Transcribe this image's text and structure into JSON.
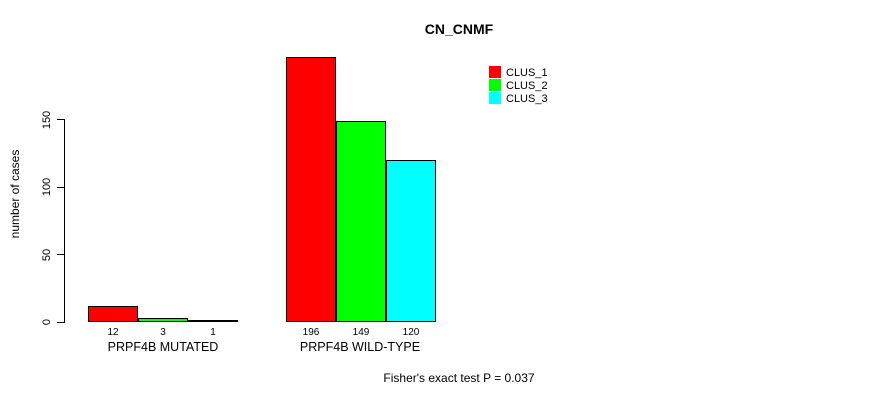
{
  "page": {
    "background": "#FFFFFF"
  },
  "chart_data": {
    "type": "bar",
    "title": "CN_CNMF",
    "ylabel": "number of cases",
    "xlabel": "",
    "categories": [
      "PRPF4B MUTATED",
      "PRPF4B WILD-TYPE"
    ],
    "series": [
      {
        "name": "CLUS_1",
        "color": "#FF0000",
        "values": [
          12,
          196
        ]
      },
      {
        "name": "CLUS_2",
        "color": "#00FF00",
        "values": [
          3,
          149
        ]
      },
      {
        "name": "CLUS_3",
        "color": "#00FFFF",
        "values": [
          1,
          120
        ]
      }
    ],
    "yticks": [
      0,
      50,
      100,
      150
    ],
    "ylim": [
      0,
      150
    ],
    "bar_outline_color": "#000000",
    "legend_position": "top-right",
    "grid": false,
    "annotation": "Fisher's exact test P = 0.037"
  }
}
